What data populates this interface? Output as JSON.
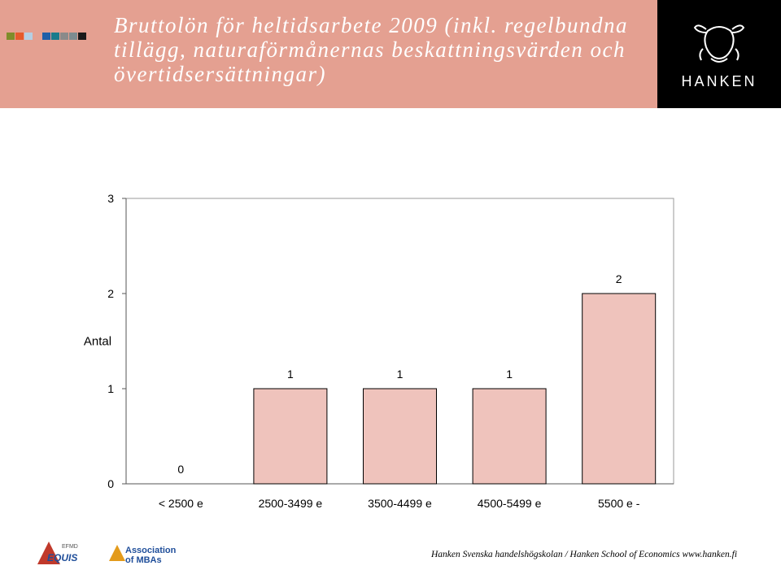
{
  "header": {
    "title": "Bruttolön för heltidsarbete 2009 (inkl. regelbundna tillägg, naturaförmånernas beskattningsvärden och övertidsersättningar)",
    "logo_text": "HANKEN",
    "background": "#e4a091",
    "swatch_colors": [
      "#7f8c2a",
      "#e55a2c",
      "#b5cfe3",
      "#1f5fa8",
      "#1a7b8c",
      "#8a8a8a",
      "#7d8c90",
      "#1a1a1a"
    ]
  },
  "chart_data": {
    "type": "bar",
    "categories": [
      "< 2500 e",
      "2500-3499 e",
      "3500-4499 e",
      "4500-5499 e",
      "5500 e -"
    ],
    "values": [
      0,
      1,
      1,
      1,
      2
    ],
    "data_labels": [
      "0",
      "1",
      "1",
      "1",
      "2"
    ],
    "xlabel": "",
    "ylabel": "Antal",
    "ylim": [
      0,
      3
    ],
    "yticks": [
      "0",
      "1",
      "2",
      "3"
    ],
    "bar_color": "#efc3bc",
    "grid": false
  },
  "footer": {
    "text": "Hanken Svenska handelshögskolan / Hanken School of Economics www.hanken.fi",
    "badges": [
      "EFMD EQUIS",
      "Association of MBAs"
    ]
  }
}
